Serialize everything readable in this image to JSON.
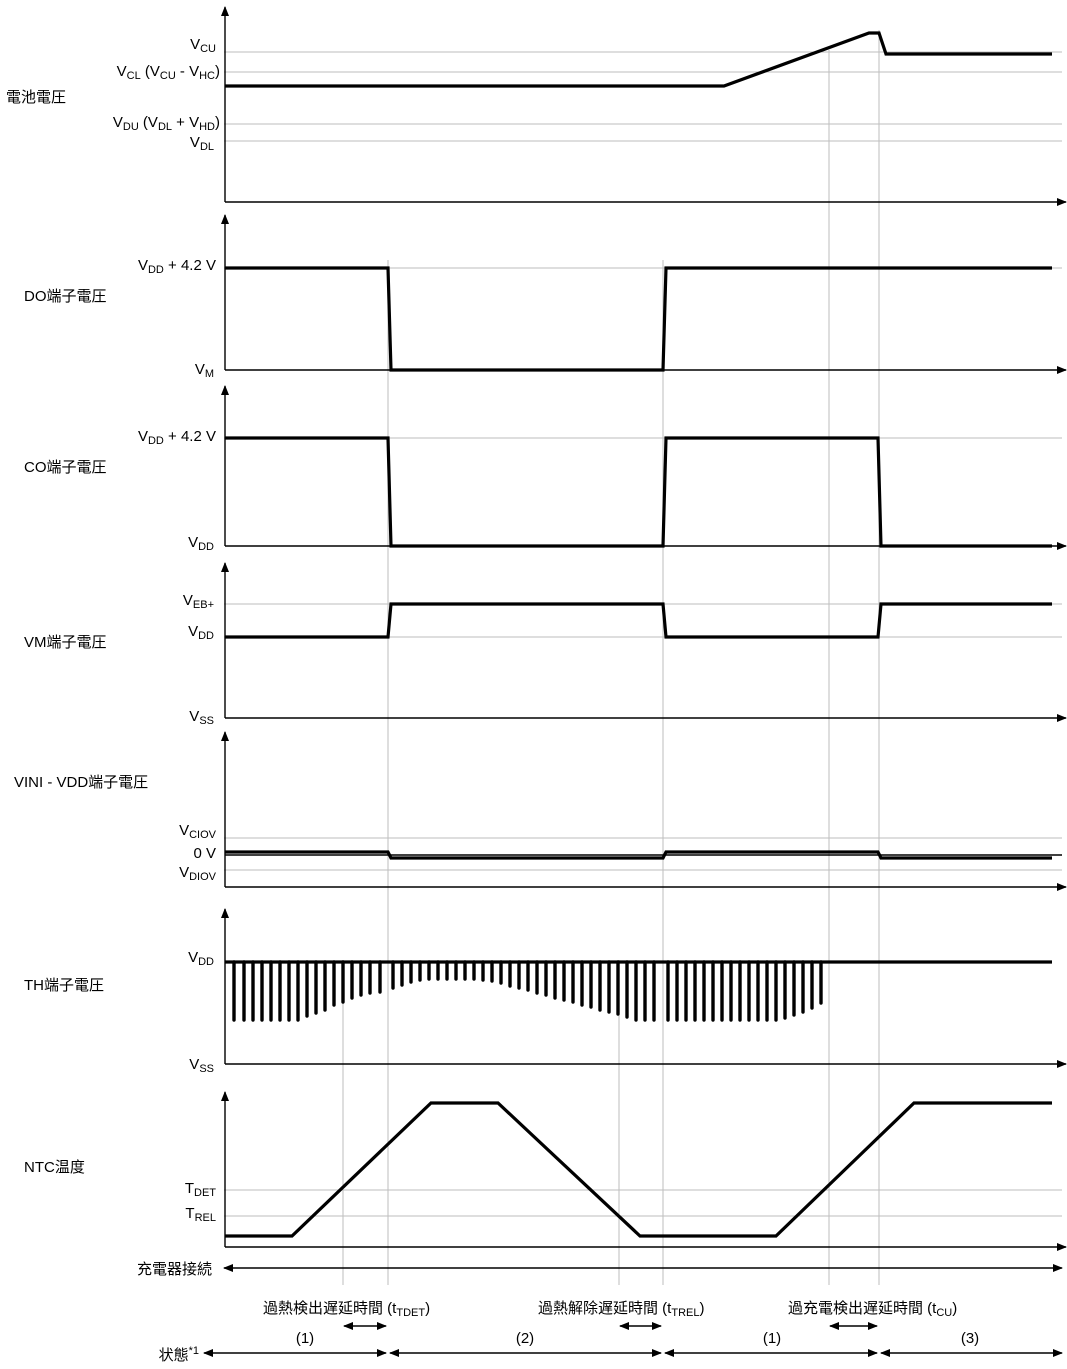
{
  "panels": {
    "battery": {
      "title": "電池電圧",
      "levels": {
        "vcu": {
          "main": "V",
          "sub": "CU",
          "tail": ""
        },
        "vcl": {
          "main": "V",
          "sub": "CL",
          "tail": " (V",
          "sub2": "CU",
          "tail2": " -  V",
          "sub3": "HC",
          "tail3": ")"
        },
        "vdu": {
          "main": "V",
          "sub": "DU",
          "tail": " (V",
          "sub2": "DL",
          "tail2": " +  V",
          "sub3": "HD",
          "tail3": ")"
        },
        "vdl": {
          "main": "V",
          "sub": "DL",
          "tail": ""
        }
      }
    },
    "do": {
      "title": "DO端子電圧",
      "high": {
        "main": "V",
        "sub": "DD",
        "tail": " + 4.2 V"
      },
      "low": {
        "main": "V",
        "sub": "M",
        "tail": ""
      }
    },
    "co": {
      "title": "CO端子電圧",
      "high": {
        "main": "V",
        "sub": "DD",
        "tail": " + 4.2 V"
      },
      "low": {
        "main": "V",
        "sub": "DD",
        "tail": ""
      }
    },
    "vm": {
      "title": "VM端子電圧",
      "veb": {
        "main": "V",
        "sub": "EB+",
        "tail": ""
      },
      "vdd": {
        "main": "V",
        "sub": "DD",
        "tail": ""
      },
      "vss": {
        "main": "V",
        "sub": "SS",
        "tail": ""
      }
    },
    "vini": {
      "title": "VINI - VDD端子電圧",
      "vciov": {
        "main": "V",
        "sub": "CIOV",
        "tail": ""
      },
      "zero": "0 V",
      "vdiov": {
        "main": "V",
        "sub": "DIOV",
        "tail": ""
      }
    },
    "th": {
      "title": "TH端子電圧",
      "vdd": {
        "main": "V",
        "sub": "DD",
        "tail": ""
      },
      "vss": {
        "main": "V",
        "sub": "SS",
        "tail": ""
      }
    },
    "ntc": {
      "title": "NTC温度",
      "tdet": {
        "main": "T",
        "sub": "DET",
        "tail": ""
      },
      "trel": {
        "main": "T",
        "sub": "REL",
        "tail": ""
      }
    }
  },
  "charger_label": "充電器接続",
  "delays": {
    "tdet": {
      "text": "過熱検出遅延時間 (t",
      "sub": "TDET",
      "tail": ")"
    },
    "trel": {
      "text": "過熱解除遅延時間 (t",
      "sub": "TREL",
      "tail": ")"
    },
    "tcu": {
      "text": "過充電検出遅延時間 (t",
      "sub": "CU",
      "tail": ")"
    }
  },
  "states": {
    "label": "状態",
    "footnote": "*1",
    "items": [
      "(1)",
      "(2)",
      "(1)",
      "(3)"
    ]
  }
}
